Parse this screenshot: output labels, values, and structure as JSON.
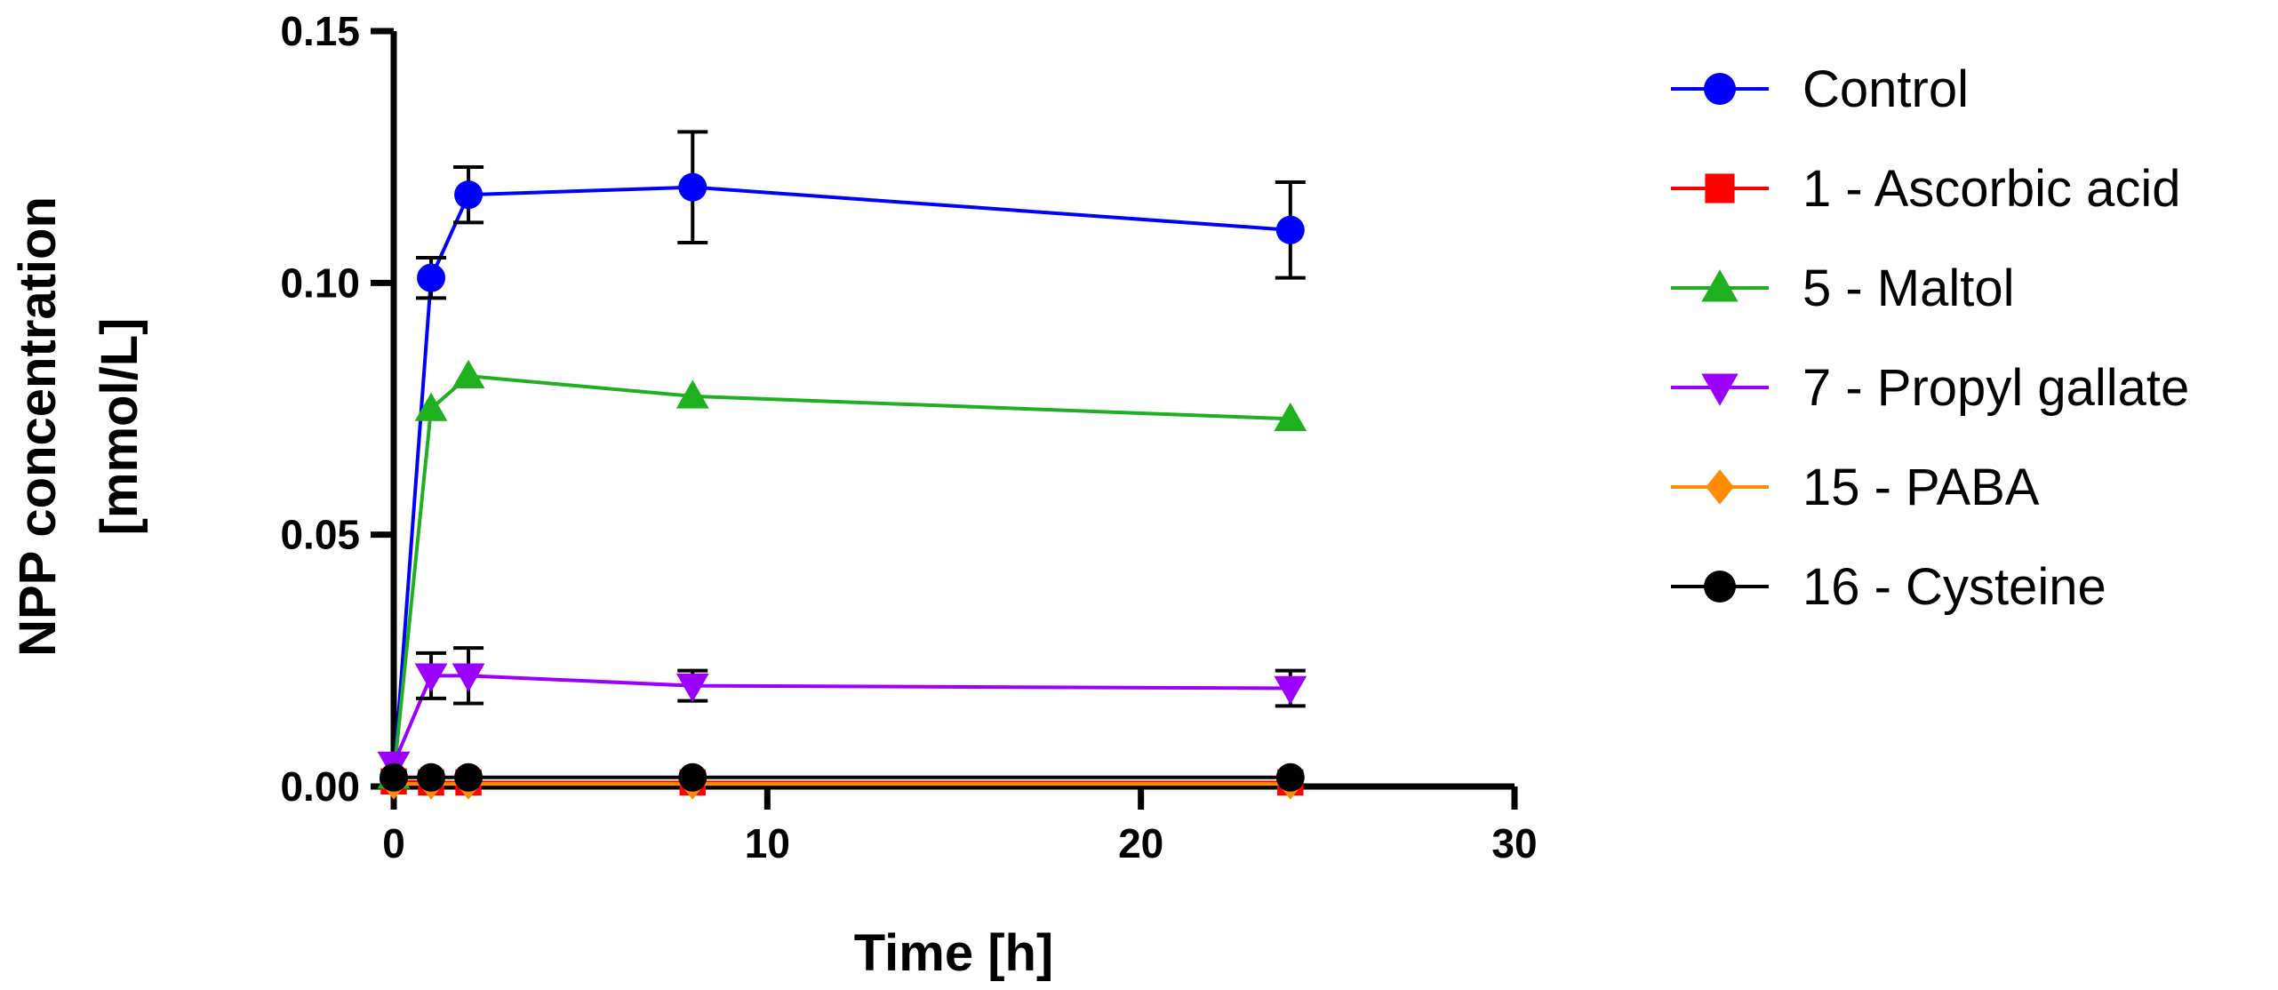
{
  "chart_data": {
    "type": "line",
    "title": "",
    "xlabel": "Time [h]",
    "ylabel_lines": [
      "NPP concentration",
      "[mmol/L]"
    ],
    "xlim": [
      0,
      30
    ],
    "ylim": [
      0,
      0.15
    ],
    "xticks": [
      0,
      10,
      20,
      30
    ],
    "xtick_labels": [
      "0",
      "10",
      "20",
      "30"
    ],
    "yticks": [
      0,
      0.05,
      0.1,
      0.15
    ],
    "ytick_labels": [
      "0.00",
      "0.05",
      "0.10",
      "0.15"
    ],
    "grid": false,
    "legend_position": "right",
    "x": [
      0,
      1,
      2,
      8,
      24
    ],
    "series": [
      {
        "name": "Control",
        "color": "#0000ff",
        "marker": "circle",
        "values": [
          0.0015,
          0.101,
          0.1175,
          0.119,
          0.1105
        ],
        "errors": [
          0,
          0.004,
          0.0055,
          0.011,
          0.0095
        ]
      },
      {
        "name": "1 - Ascorbic acid",
        "color": "#ff0000",
        "marker": "square",
        "values": [
          0.001,
          0.0008,
          0.0008,
          0.0008,
          0.0008
        ],
        "errors": [
          0,
          0,
          0,
          0,
          0
        ]
      },
      {
        "name": "5 - Maltol",
        "color": "#1fb01f",
        "marker": "triangle-up",
        "values": [
          0.002,
          0.075,
          0.0815,
          0.0775,
          0.073
        ],
        "errors": [
          0,
          0,
          0,
          0,
          0
        ]
      },
      {
        "name": "7 - Propyl gallate",
        "color": "#9b00ff",
        "marker": "triangle-down",
        "values": [
          0.0045,
          0.022,
          0.022,
          0.02,
          0.0195
        ],
        "errors": [
          0,
          0.0045,
          0.0055,
          0.003,
          0.0035
        ]
      },
      {
        "name": "15 - PABA",
        "color": "#ff8c00",
        "marker": "diamond",
        "values": [
          0.0005,
          0.0005,
          0.0005,
          0.0005,
          0.0005
        ],
        "errors": [
          0,
          0,
          0,
          0,
          0
        ]
      },
      {
        "name": "16 - Cysteine",
        "color": "#000000",
        "marker": "circle",
        "values": [
          0.0018,
          0.0018,
          0.0018,
          0.0018,
          0.0018
        ],
        "errors": [
          0,
          0,
          0,
          0,
          0
        ]
      }
    ]
  }
}
